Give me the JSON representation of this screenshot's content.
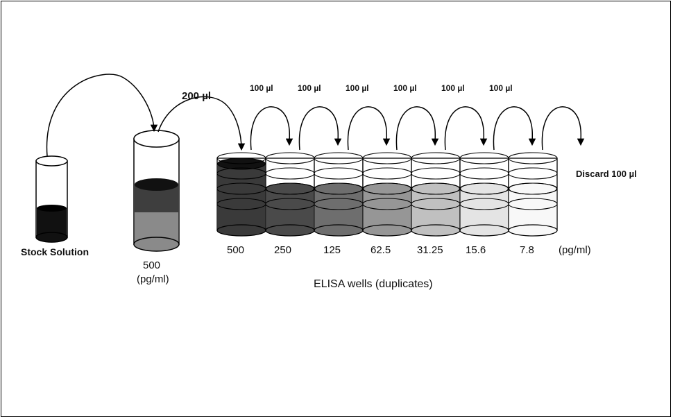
{
  "stock_label": "Stock Solution",
  "tube_conc_value": "500",
  "tube_conc_unit": "(pg/ml)",
  "transfer_200": "200 µl",
  "transfer_100": [
    "100 µl",
    "100 µl",
    "100 µl",
    "100 µl",
    "100 µl",
    "100 µl"
  ],
  "discard_label": "Discard 100 µl",
  "well_concentrations": [
    "500",
    "250",
    "125",
    "62.5",
    "31.25",
    "15.6",
    "7.8"
  ],
  "wells_unit": "(pg/ml)",
  "wells_caption": "ELISA wells (duplicates)",
  "colors": {
    "well_fills": [
      "#3a3a3a",
      "#4a4a4a",
      "#6e6e6e",
      "#969696",
      "#c0c0c0",
      "#e4e4e4",
      "#f8f8f8"
    ],
    "stock_fill": "#111111",
    "tube_fill_top": "#2a2a2a",
    "tube_fill_bottom": "#8a8a8a"
  }
}
